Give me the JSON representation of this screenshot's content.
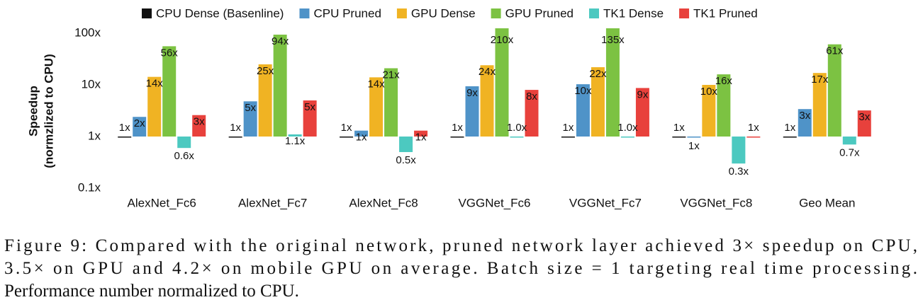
{
  "chart_data": {
    "type": "bar",
    "ylabel": [
      "Speedup",
      "(normzlized to CPU)"
    ],
    "log_scale": true,
    "grid": false,
    "legend": "top",
    "baseline": 1,
    "categories": [
      "AlexNet_Fc6",
      "AlexNet_Fc7",
      "AlexNet_Fc8",
      "VGGNet_Fc6",
      "VGGNet_Fc7",
      "VGGNet_Fc8",
      "Geo Mean"
    ],
    "ylim": [
      0.1,
      100
    ],
    "yticks": [
      {
        "value": 0.1,
        "label": "0.1x"
      },
      {
        "value": 1,
        "label": "1x"
      },
      {
        "value": 10,
        "label": "10x"
      },
      {
        "value": 100,
        "label": "100x"
      }
    ],
    "series": [
      {
        "name": "CPU Dense (Basenline)",
        "color": "#111111",
        "values": [
          1,
          1,
          1,
          1,
          1,
          1,
          1
        ],
        "value_labels": [
          "1x",
          "1x",
          "1x",
          "1x",
          "1x",
          "1x",
          "1x"
        ]
      },
      {
        "name": "CPU Pruned",
        "color": "#4f93c8",
        "values": [
          2.4,
          4.8,
          1.3,
          9.4,
          10.3,
          1,
          3.4
        ],
        "value_labels": [
          "2x",
          "5x",
          "1x",
          "9x",
          "10x",
          "1x",
          "3x"
        ]
      },
      {
        "name": "GPU Dense",
        "color": "#f0b323",
        "values": [
          14.3,
          25,
          14,
          24,
          22,
          10,
          17
        ],
        "value_labels": [
          "14x",
          "25x",
          "14x",
          "24x",
          "22x",
          "10x",
          "17x"
        ]
      },
      {
        "name": "GPU Pruned",
        "color": "#7cc242",
        "values": [
          56,
          94,
          21,
          210,
          135,
          16,
          61
        ],
        "value_labels": [
          "56x",
          "94x",
          "21x",
          "210x",
          "135x",
          "16x",
          "61x"
        ]
      },
      {
        "name": "TK1 Dense",
        "color": "#4cc9c0",
        "values": [
          0.6,
          1.1,
          0.5,
          1.0,
          1.0,
          0.3,
          0.7
        ],
        "value_labels": [
          "0.6x",
          "1.1x",
          "0.5x",
          "1.0x",
          "1.0x",
          "0.3x",
          "0.7x"
        ]
      },
      {
        "name": "TK1 Pruned",
        "color": "#e8413c",
        "values": [
          2.6,
          5,
          1.3,
          8,
          8.7,
          1,
          3.2
        ],
        "value_labels": [
          "3x",
          "5x",
          "1x",
          "8x",
          "9x",
          "1x",
          "3x"
        ]
      }
    ]
  },
  "caption": [
    "Figure 9: Compared with the original network, pruned network layer achieved 3× speedup on CPU,",
    "3.5× on GPU and 4.2× on mobile GPU on average. Batch size = 1 targeting real time processing.",
    "Performance number normalized to CPU."
  ]
}
